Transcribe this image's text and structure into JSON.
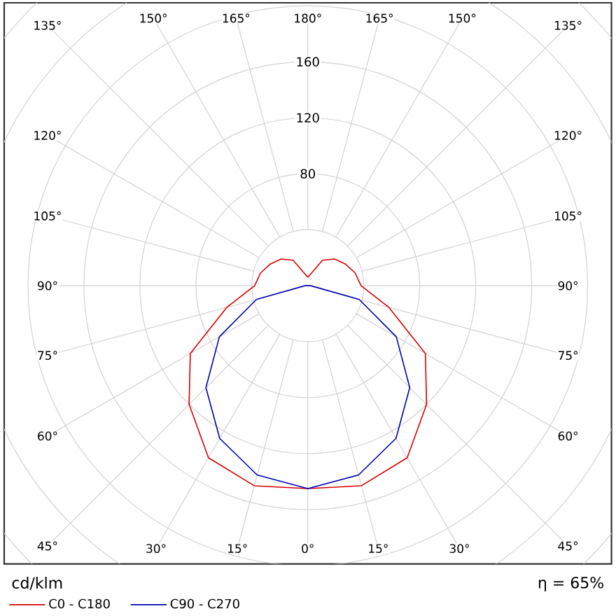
{
  "chart_data": {
    "type": "radar",
    "categories": [
      "180°",
      "165°",
      "150°",
      "135°",
      "120°",
      "105°",
      "90°",
      "75°",
      "60°",
      "45°",
      "30°",
      "15°",
      "0°",
      "15°",
      "30°",
      "45°",
      "60°",
      "75°",
      "90°",
      "105°",
      "120°",
      "135°",
      "150°",
      "165°"
    ],
    "series": [
      {
        "name": "C0 - C180",
        "color": "#d40000",
        "values": [
          6,
          9,
          21,
          27,
          31,
          35,
          38,
          60,
          97,
          120,
          142,
          148,
          145,
          148,
          142,
          120,
          97,
          60,
          38,
          35,
          31,
          27,
          21,
          9
        ]
      },
      {
        "name": "C90 - C270",
        "color": "#0000b0",
        "values": [
          0,
          0,
          0,
          0,
          0,
          0,
          2,
          38,
          73,
          103,
          126,
          140,
          145,
          140,
          126,
          103,
          73,
          38,
          2,
          0,
          0,
          0,
          0,
          0
        ]
      }
    ],
    "ylim": [
      0,
      280
    ],
    "yticks": [
      80,
      120,
      160
    ],
    "grid": true,
    "ylabel": "cd/klm",
    "annotations": [
      "η = 65%"
    ],
    "legend": "bottom left"
  }
}
